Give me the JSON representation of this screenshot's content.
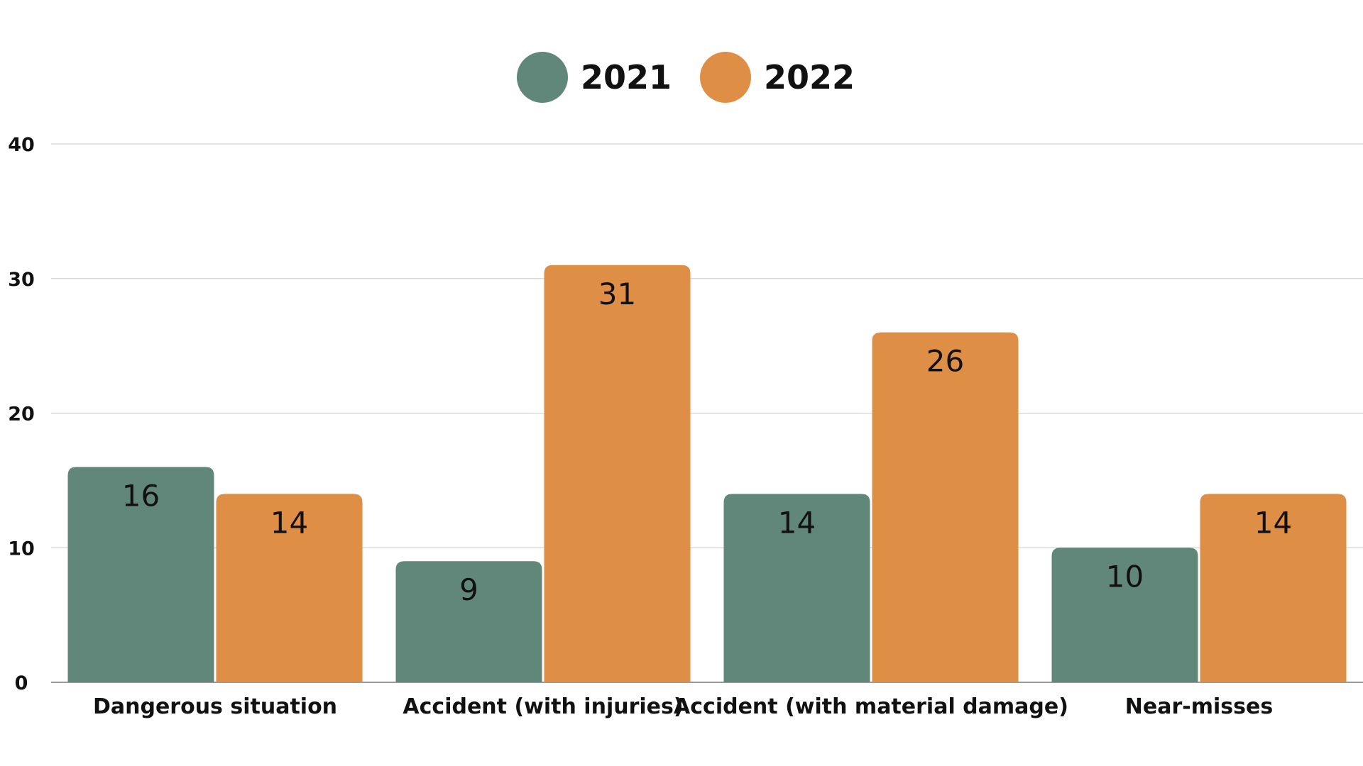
{
  "chart_data": {
    "type": "bar",
    "categories": [
      "Dangerous situation",
      "Accident (with injuries)",
      "Accident (with material damage)",
      "Near-misses"
    ],
    "series": [
      {
        "name": "2021",
        "color": "#61877b",
        "values": [
          16,
          9,
          14,
          10
        ]
      },
      {
        "name": "2022",
        "color": "#de8f45",
        "values": [
          14,
          31,
          26,
          14
        ]
      }
    ],
    "ylim": [
      0,
      40
    ],
    "yticks": [
      0,
      10,
      20,
      30,
      40
    ],
    "title": "",
    "xlabel": "",
    "ylabel": "",
    "grid": true,
    "legend_position": "top-center",
    "data_labels": true
  }
}
